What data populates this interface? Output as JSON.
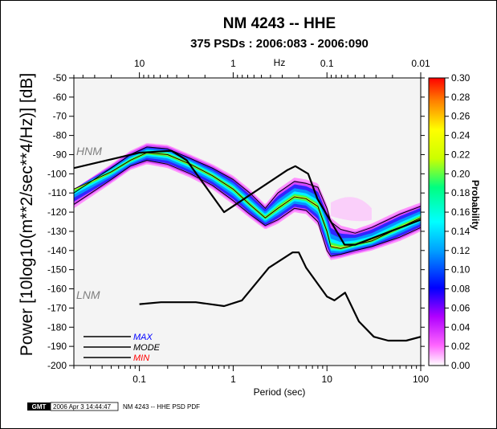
{
  "chart_data": {
    "type": "heatmap",
    "title": "NM 4243 -- HHE",
    "subtitle": "375 PSDs : 2006:083 - 2006:090",
    "xlabel": "Period (sec)",
    "ylabel": "Power [10log10(m**2/sec**4/Hz)] [dB]",
    "x_scale": "log",
    "xlim": [
      0.02,
      100
    ],
    "ylim": [
      -200,
      -50
    ],
    "x_ticks": [
      "0.1",
      "1",
      "10",
      "100"
    ],
    "y_ticks": [
      "-50",
      "-60",
      "-70",
      "-80",
      "-90",
      "-100",
      "-110",
      "-120",
      "-130",
      "-140",
      "-150",
      "-160",
      "-170",
      "-180",
      "-190",
      "-200"
    ],
    "top_axis": {
      "label": "Hz",
      "ticks": [
        "10",
        "1",
        "0.1",
        "0.01"
      ]
    },
    "colorbar": {
      "label": "Probability",
      "range": [
        0.0,
        0.3
      ],
      "ticks": [
        "0.30",
        "0.28",
        "0.26",
        "0.24",
        "0.22",
        "0.20",
        "0.18",
        "0.16",
        "0.14",
        "0.12",
        "0.10",
        "0.08",
        "0.06",
        "0.04",
        "0.02",
        "0.00"
      ]
    },
    "annotations": [
      "HNM",
      "LNM"
    ],
    "legend": {
      "placement": "bottom-left",
      "entries": [
        {
          "label": "MAX",
          "color": "#0000ff"
        },
        {
          "label": "MODE",
          "color": "#000000"
        },
        {
          "label": "MIN",
          "color": "#ff0000"
        }
      ]
    },
    "series": [
      {
        "name": "HNM",
        "x": [
          0.02,
          0.1,
          0.22,
          0.32,
          0.8,
          3.8,
          4.6,
          6.3,
          7.9,
          15.4,
          20,
          100
        ],
        "y": [
          -97,
          -89,
          -88,
          -93,
          -120,
          -98,
          -96,
          -100,
          -113,
          -137,
          -137,
          -124
        ]
      },
      {
        "name": "LNM",
        "x": [
          0.1,
          0.17,
          0.4,
          0.8,
          1.24,
          2.4,
          4.3,
          5,
          6,
          10,
          12,
          15.6,
          21.9,
          31.6,
          45,
          70,
          100
        ],
        "y": [
          -168,
          -167,
          -167,
          -169,
          -166,
          -149,
          -141,
          -141,
          -149,
          -164,
          -166,
          -162,
          -177,
          -185,
          -187,
          -187,
          -185
        ]
      },
      {
        "name": "MAX",
        "x": [
          0.02,
          0.05,
          0.08,
          0.12,
          0.2,
          0.35,
          0.6,
          1,
          1.5,
          2.2,
          3,
          4.5,
          6,
          8,
          10,
          11,
          14,
          20,
          30,
          60,
          100
        ],
        "y": [
          -110,
          -97,
          -90,
          -86,
          -87,
          -92,
          -97,
          -103,
          -110,
          -118,
          -110,
          -104,
          -105,
          -107,
          -118,
          -125,
          -129,
          -131,
          -128,
          -121,
          -117
        ]
      },
      {
        "name": "MODE",
        "x": [
          0.02,
          0.05,
          0.08,
          0.12,
          0.2,
          0.35,
          0.6,
          1,
          1.5,
          2.2,
          3,
          4.5,
          6,
          8,
          10,
          11,
          14,
          20,
          30,
          60,
          100
        ],
        "y": [
          -108,
          -99,
          -93,
          -89,
          -90,
          -95,
          -101,
          -108,
          -116,
          -123,
          -118,
          -112,
          -113,
          -117,
          -130,
          -138,
          -139,
          -137,
          -135,
          -128,
          -123
        ]
      },
      {
        "name": "MIN",
        "x": [
          0.02,
          0.05,
          0.08,
          0.12,
          0.2,
          0.35,
          0.6,
          1,
          1.5,
          2.2,
          3,
          4.5,
          6,
          8,
          10,
          11,
          14,
          20,
          30,
          60,
          100
        ],
        "y": [
          -116,
          -103,
          -96,
          -93,
          -95,
          -100,
          -106,
          -114,
          -121,
          -127,
          -124,
          -118,
          -119,
          -125,
          -140,
          -143,
          -142,
          -140,
          -138,
          -133,
          -128
        ]
      }
    ]
  },
  "footer": {
    "logo": "GMT",
    "timestamp": "2006 Apr  3 14:44:47",
    "caption": "NM 4243 -- HHE PSD PDF"
  }
}
